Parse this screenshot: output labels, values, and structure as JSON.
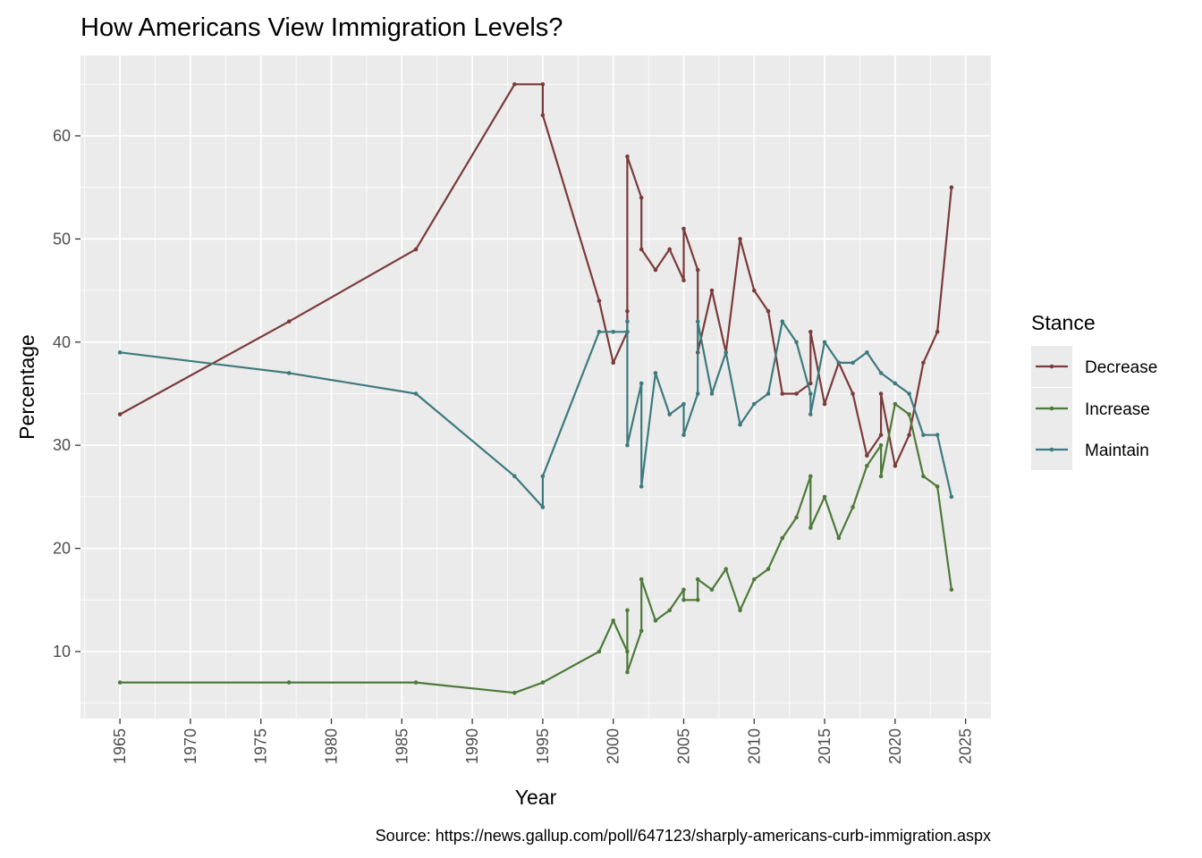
{
  "chart_data": {
    "type": "line",
    "title": "How Americans View Immigration Levels?",
    "xlabel": "Year",
    "ylabel": "Percentage",
    "caption": "Source: https://news.gallup.com/poll/647123/sharply-americans-curb-immigration.aspx",
    "xlim": [
      1962.2,
      2026.8
    ],
    "ylim": [
      3.5,
      67.8
    ],
    "x_ticks": [
      1965,
      1970,
      1975,
      1980,
      1985,
      1990,
      1995,
      2000,
      2005,
      2010,
      2015,
      2020,
      2025
    ],
    "y_ticks": [
      10,
      20,
      30,
      40,
      50,
      60
    ],
    "grid": true,
    "legend": {
      "title": "Stance",
      "placement": "right"
    },
    "series": [
      {
        "name": "Decrease",
        "color": "#7B3B3B",
        "points": [
          [
            1965,
            33
          ],
          [
            1977,
            42
          ],
          [
            1986,
            49
          ],
          [
            1993,
            65
          ],
          [
            1995,
            65
          ],
          [
            1995,
            62
          ],
          [
            1999,
            44
          ],
          [
            2000,
            38
          ],
          [
            2001,
            41
          ],
          [
            2001,
            43
          ],
          [
            2001,
            58
          ],
          [
            2002,
            54
          ],
          [
            2002,
            49
          ],
          [
            2003,
            47
          ],
          [
            2004,
            49
          ],
          [
            2005,
            46
          ],
          [
            2005,
            51
          ],
          [
            2006,
            47
          ],
          [
            2006,
            39
          ],
          [
            2007,
            45
          ],
          [
            2008,
            39
          ],
          [
            2009,
            50
          ],
          [
            2010,
            45
          ],
          [
            2011,
            43
          ],
          [
            2012,
            35
          ],
          [
            2013,
            35
          ],
          [
            2014,
            36
          ],
          [
            2014,
            41
          ],
          [
            2015,
            34
          ],
          [
            2016,
            38
          ],
          [
            2017,
            35
          ],
          [
            2018,
            29
          ],
          [
            2019,
            31
          ],
          [
            2019,
            35
          ],
          [
            2020,
            28
          ],
          [
            2021,
            31
          ],
          [
            2022,
            38
          ],
          [
            2023,
            41
          ],
          [
            2024,
            55
          ]
        ]
      },
      {
        "name": "Increase",
        "color": "#4E7A3A",
        "points": [
          [
            1965,
            7
          ],
          [
            1977,
            7
          ],
          [
            1986,
            7
          ],
          [
            1993,
            6
          ],
          [
            1995,
            7
          ],
          [
            1999,
            10
          ],
          [
            2000,
            13
          ],
          [
            2001,
            10
          ],
          [
            2001,
            14
          ],
          [
            2001,
            8
          ],
          [
            2002,
            12
          ],
          [
            2002,
            17
          ],
          [
            2003,
            13
          ],
          [
            2004,
            14
          ],
          [
            2005,
            16
          ],
          [
            2005,
            15
          ],
          [
            2006,
            15
          ],
          [
            2006,
            17
          ],
          [
            2007,
            16
          ],
          [
            2008,
            18
          ],
          [
            2009,
            14
          ],
          [
            2010,
            17
          ],
          [
            2011,
            18
          ],
          [
            2012,
            21
          ],
          [
            2013,
            23
          ],
          [
            2014,
            27
          ],
          [
            2014,
            22
          ],
          [
            2015,
            25
          ],
          [
            2016,
            21
          ],
          [
            2017,
            24
          ],
          [
            2018,
            28
          ],
          [
            2019,
            30
          ],
          [
            2019,
            27
          ],
          [
            2020,
            34
          ],
          [
            2021,
            33
          ],
          [
            2022,
            27
          ],
          [
            2023,
            26
          ],
          [
            2024,
            16
          ]
        ]
      },
      {
        "name": "Maintain",
        "color": "#3E7A7E",
        "points": [
          [
            1965,
            39
          ],
          [
            1977,
            37
          ],
          [
            1986,
            35
          ],
          [
            1993,
            27
          ],
          [
            1995,
            24
          ],
          [
            1995,
            27
          ],
          [
            1999,
            41
          ],
          [
            2000,
            41
          ],
          [
            2001,
            41
          ],
          [
            2001,
            42
          ],
          [
            2001,
            30
          ],
          [
            2002,
            36
          ],
          [
            2002,
            26
          ],
          [
            2003,
            37
          ],
          [
            2004,
            33
          ],
          [
            2005,
            34
          ],
          [
            2005,
            31
          ],
          [
            2006,
            35
          ],
          [
            2006,
            42
          ],
          [
            2007,
            35
          ],
          [
            2008,
            39
          ],
          [
            2009,
            32
          ],
          [
            2010,
            34
          ],
          [
            2011,
            35
          ],
          [
            2012,
            42
          ],
          [
            2013,
            40
          ],
          [
            2014,
            35
          ],
          [
            2014,
            33
          ],
          [
            2015,
            40
          ],
          [
            2016,
            38
          ],
          [
            2017,
            38
          ],
          [
            2018,
            39
          ],
          [
            2019,
            37
          ],
          [
            2020,
            36
          ],
          [
            2021,
            35
          ],
          [
            2022,
            31
          ],
          [
            2023,
            31
          ],
          [
            2024,
            25
          ]
        ]
      }
    ]
  }
}
